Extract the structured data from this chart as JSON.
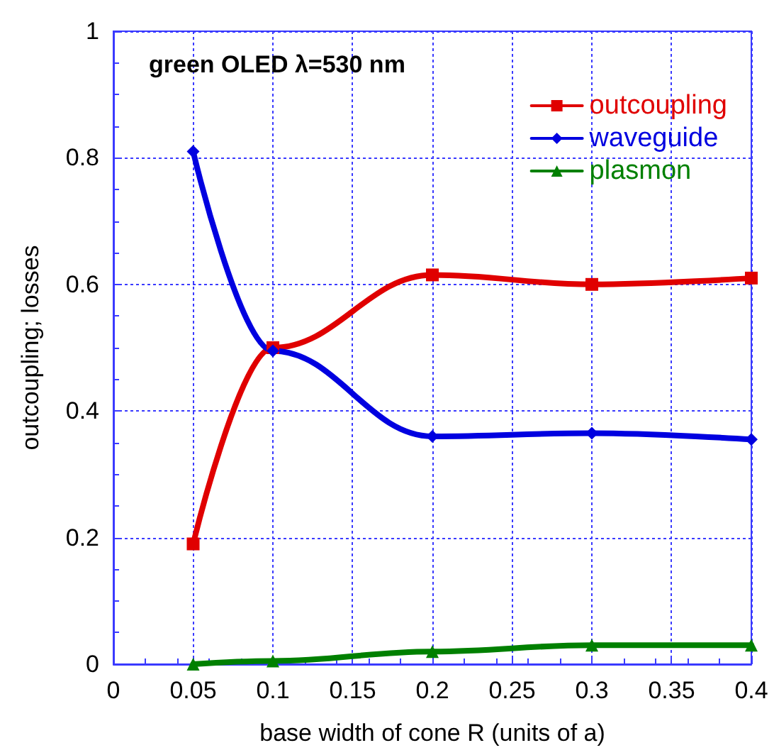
{
  "chart_data": {
    "type": "line",
    "xlabel": "base width of cone R (units of a)",
    "ylabel": "outcoupling; losses",
    "annotations": [
      "green OLED λ=530 nm"
    ],
    "x": [
      0.05,
      0.1,
      0.2,
      0.3,
      0.4
    ],
    "series": [
      {
        "name": "outcoupling",
        "color": "#e00000",
        "marker": "square",
        "values": [
          0.19,
          0.5,
          0.615,
          0.6,
          0.61
        ]
      },
      {
        "name": "waveguide",
        "color": "#0000e0",
        "marker": "diamond",
        "values": [
          0.81,
          0.495,
          0.36,
          0.365,
          0.355
        ]
      },
      {
        "name": "plasmon",
        "color": "#008000",
        "marker": "triangle",
        "values": [
          0,
          0.005,
          0.02,
          0.03,
          0.03
        ]
      }
    ],
    "xlim": [
      0,
      0.4
    ],
    "xticks": [
      0,
      0.05,
      0.1,
      0.15,
      0.2,
      0.25,
      0.3,
      0.35,
      0.4
    ],
    "ylim": [
      0,
      1
    ],
    "yticks": [
      0,
      0.2,
      0.4,
      0.6,
      0.8,
      1
    ],
    "grid": true,
    "legend": "top right",
    "line_style": "solid"
  }
}
